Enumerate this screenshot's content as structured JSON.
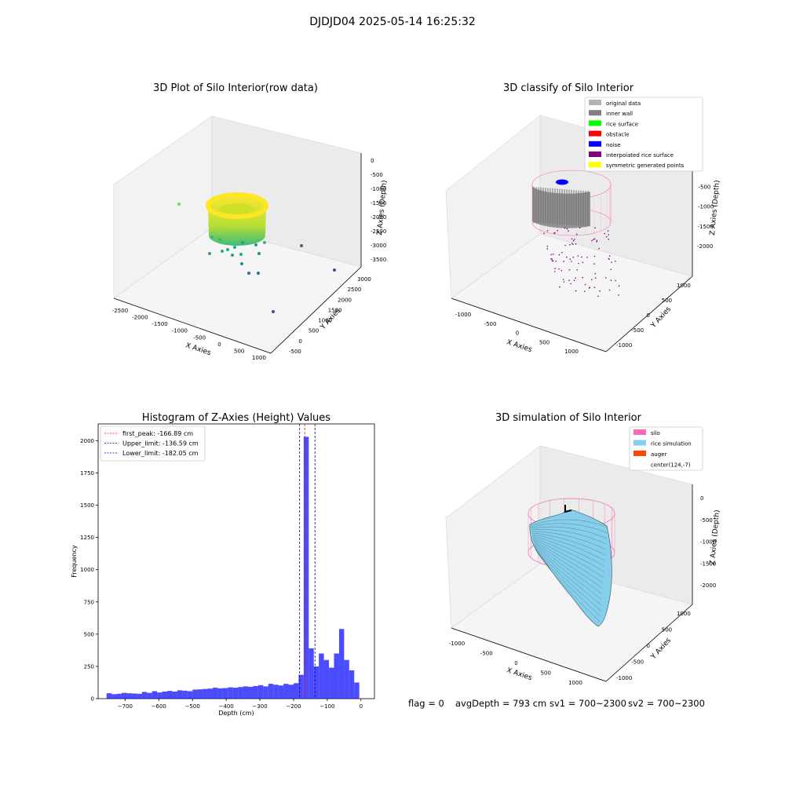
{
  "figure": {
    "suptitle": "DJDJD04 2025-05-14 16:25:32",
    "status_line": {
      "flag": "flag = 0",
      "avg_depth": "avgDepth = 793 cm",
      "sv1": "sv1 = 700~2300",
      "sv2": "sv2 = 700~2300"
    }
  },
  "chart_data": [
    {
      "type": "scatter",
      "title": "3D Plot of Silo Interior(row data)",
      "xlabel": "X Axies",
      "ylabel": "Y Axies",
      "zlabel": "Z Axies (Depth)",
      "x_ticks": [
        "-2500",
        "-2000",
        "-1500",
        "-1000",
        "-500",
        "0",
        "500",
        "1000"
      ],
      "y_ticks": [
        "-500",
        "0",
        "500",
        "1000",
        "1500",
        "2000",
        "2500",
        "3000"
      ],
      "z_ticks": [
        "0",
        "-500",
        "-1000",
        "-1500",
        "-2000",
        "-2500",
        "-3000",
        "-3500"
      ],
      "colormap": "viridis",
      "grid": true
    },
    {
      "type": "scatter",
      "title": "3D classify of Silo Interior",
      "xlabel": "X Axies",
      "ylabel": "Y Axies",
      "zlabel": "Z Axies (Depth)",
      "x_ticks": [
        "-1000",
        "-500",
        "0",
        "500",
        "1000"
      ],
      "y_ticks": [
        "-1000",
        "-500",
        "0",
        "500",
        "1000"
      ],
      "z_ticks": [
        "0",
        "-500",
        "-1000",
        "-1500",
        "-2000"
      ],
      "legend": {
        "placement": "top-right",
        "items": [
          {
            "label": "original data",
            "color": "#b3b3b3"
          },
          {
            "label": "inner wall",
            "color": "#808080"
          },
          {
            "label": "rice surface",
            "color": "#00ff00"
          },
          {
            "label": "obstacle",
            "color": "#ff0000"
          },
          {
            "label": "noise",
            "color": "#0000ff"
          },
          {
            "label": "interpolated rice surface",
            "color": "#800080"
          },
          {
            "label": "symmetric generated points",
            "color": "#ffff00"
          }
        ]
      },
      "grid": true
    },
    {
      "type": "bar",
      "title": "Histogram of Z-Axies (Height) Values",
      "xlabel": "Depth (cm)",
      "ylabel": "Frequency",
      "xlim": [
        -780,
        40
      ],
      "ylim": [
        0,
        2130
      ],
      "x_ticks": [
        -700,
        -600,
        -500,
        -400,
        -300,
        -200,
        -100,
        0
      ],
      "y_ticks": [
        0,
        250,
        500,
        750,
        1000,
        1250,
        1500,
        1750,
        2000
      ],
      "bin_width": 15,
      "bin_starts": [
        -755,
        -740,
        -725,
        -710,
        -695,
        -680,
        -665,
        -650,
        -635,
        -620,
        -605,
        -590,
        -575,
        -560,
        -545,
        -530,
        -515,
        -500,
        -485,
        -470,
        -455,
        -440,
        -425,
        -410,
        -395,
        -380,
        -365,
        -350,
        -335,
        -320,
        -305,
        -290,
        -275,
        -260,
        -245,
        -230,
        -215,
        -200,
        -185,
        -170,
        -155,
        -140,
        -125,
        -110,
        -95,
        -80,
        -65,
        -50,
        -35,
        -20,
        -5
      ],
      "counts": [
        42,
        35,
        38,
        45,
        42,
        40,
        38,
        52,
        45,
        58,
        48,
        55,
        60,
        55,
        65,
        62,
        58,
        70,
        72,
        75,
        78,
        85,
        80,
        82,
        88,
        85,
        90,
        95,
        92,
        98,
        105,
        95,
        115,
        108,
        102,
        115,
        108,
        120,
        185,
        2030,
        390,
        250,
        350,
        300,
        240,
        350,
        540,
        300,
        220,
        125,
        0
      ],
      "bar_color": "#0000ff",
      "reference_lines": [
        {
          "label": "first_peak: -166.89 cm",
          "value": -166.89,
          "color": "#ff0000"
        },
        {
          "label": "Upper_limit: -136.59 cm",
          "value": -136.59,
          "color": "#0000aa"
        },
        {
          "label": "Lower_limit: -182.05 cm",
          "value": -182.05,
          "color": "#0000aa"
        }
      ],
      "legend": {
        "placement": "top-left"
      }
    },
    {
      "type": "area",
      "title": "3D simulation of Silo Interior",
      "xlabel": "X Axies",
      "ylabel": "Y Axies",
      "zlabel": "Z Axies (Depth)",
      "x_ticks": [
        "-1000",
        "-500",
        "0",
        "500",
        "1000"
      ],
      "y_ticks": [
        "-1000",
        "-500",
        "0",
        "500",
        "1000"
      ],
      "z_ticks": [
        "0",
        "-500",
        "-1000",
        "-1500",
        "-2000"
      ],
      "legend": {
        "placement": "top-right",
        "items": [
          {
            "label": "silo",
            "color": "#ff69b4"
          },
          {
            "label": "rice simulation",
            "color": "#87ceeb"
          },
          {
            "label": "auger",
            "color": "#ff4500"
          },
          {
            "label": "center(124,-7)",
            "color": "#ffffff"
          }
        ]
      },
      "grid": true
    }
  ]
}
